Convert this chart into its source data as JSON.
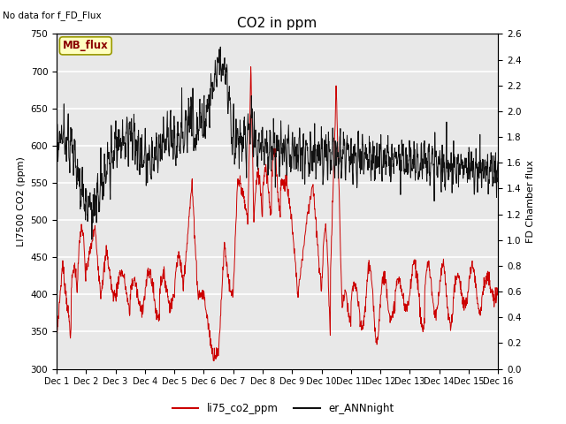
{
  "title": "CO2 in ppm",
  "ylabel_left": "LI7500 CO2 (ppm)",
  "ylabel_right": "FD Chamber flux",
  "ylim_left": [
    300,
    750
  ],
  "ylim_right": [
    0.0,
    2.6
  ],
  "yticks_left": [
    300,
    350,
    400,
    450,
    500,
    550,
    600,
    650,
    700,
    750
  ],
  "yticks_right": [
    0.0,
    0.2,
    0.4,
    0.6,
    0.8,
    1.0,
    1.2,
    1.4,
    1.6,
    1.8,
    2.0,
    2.2,
    2.4,
    2.6
  ],
  "no_data_text": "No data for f_FD_Flux",
  "mb_flux_label": "MB_flux",
  "legend_red": "li75_co2_ppm",
  "legend_black": "er_ANNnight",
  "x_tick_labels": [
    "Dec 1",
    "Dec 2",
    "Dec 3",
    "Dec 4",
    "Dec 5",
    "Dec 6",
    "Dec 7",
    "Dec 8",
    "Dec 9",
    "Dec 10",
    "Dec 11",
    "Dec 12",
    "Dec 13",
    "Dec 14",
    "Dec 15",
    "Dec 16"
  ],
  "plot_bg_color": "#e8e8e8",
  "red_color": "#cc0000",
  "black_color": "#111111",
  "figsize": [
    6.4,
    4.8
  ],
  "dpi": 100
}
